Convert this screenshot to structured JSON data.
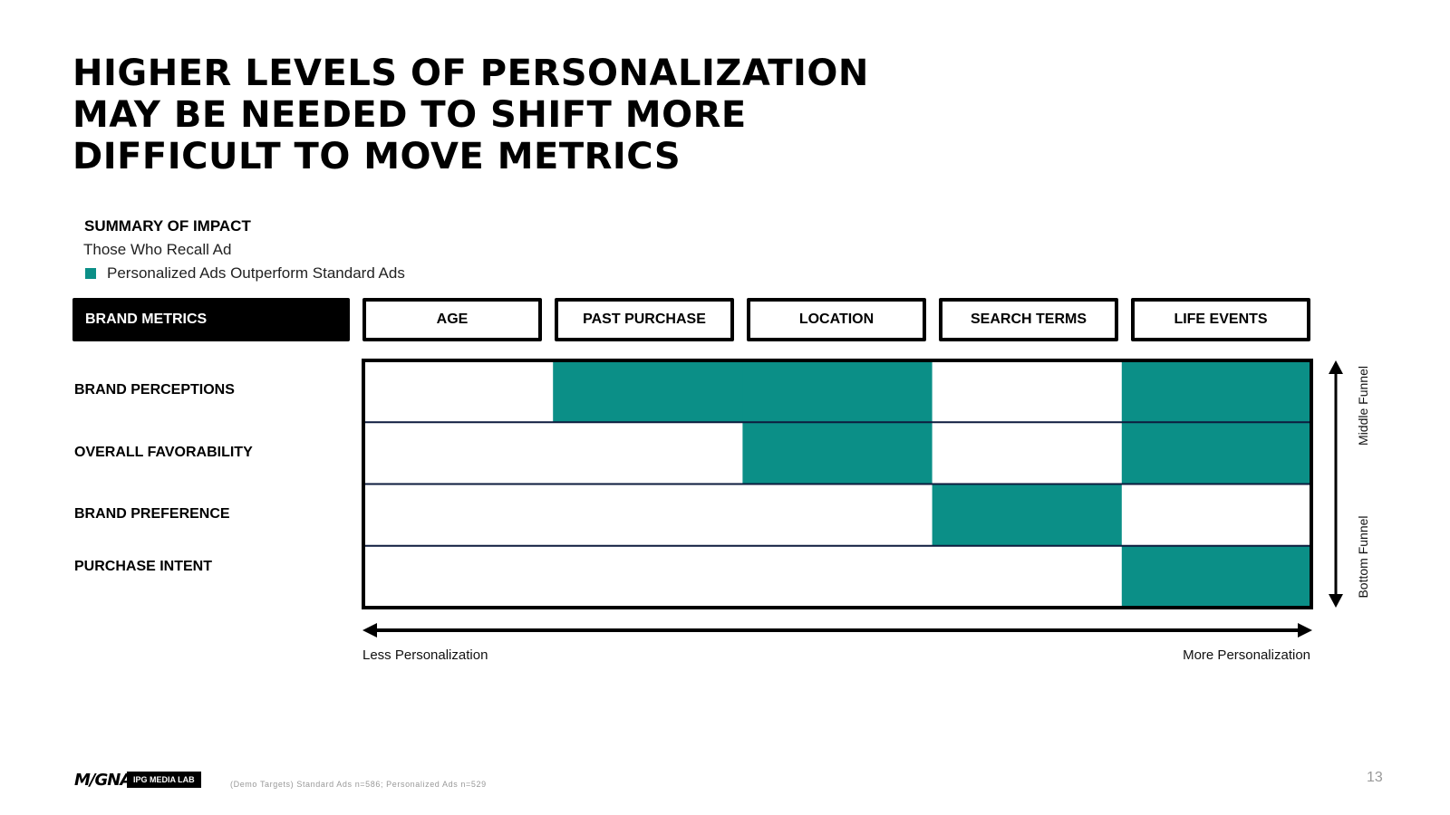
{
  "title_lines": [
    "HIGHER LEVELS OF PERSONALIZATION",
    "MAY BE NEEDED TO SHIFT MORE",
    "DIFFICULT TO MOVE METRICS"
  ],
  "summary": {
    "heading": "SUMMARY OF IMPACT",
    "subheading": "Those Who Recall Ad",
    "legend_label": "Personalized Ads Outperform Standard Ads",
    "legend_color": "#0b8f87"
  },
  "chart_data": {
    "type": "heatmap",
    "corner_header": "BRAND METRICS",
    "columns": [
      "AGE",
      "PAST PURCHASE",
      "LOCATION",
      "SEARCH TERMS",
      "LIFE EVENTS"
    ],
    "rows": [
      "BRAND PERCEPTIONS",
      "OVERALL FAVORABILITY",
      "BRAND PREFERENCE",
      "PURCHASE INTENT"
    ],
    "values": [
      [
        0,
        1,
        1,
        0,
        1
      ],
      [
        0,
        0,
        1,
        0,
        1
      ],
      [
        0,
        0,
        0,
        1,
        0
      ],
      [
        0,
        0,
        0,
        0,
        1
      ]
    ],
    "highlight_color": "#0b8f87",
    "x_axis": {
      "left_label": "Less Personalization",
      "right_label": "More Personalization"
    },
    "y_axis": {
      "top_label": "Middle Funnel",
      "bottom_label": "Bottom Funnel"
    }
  },
  "footer": {
    "logo_text": "M/GNA",
    "badge_text": "IPG MEDIA LAB",
    "footnote": "(Demo Targets) Standard Ads n=586; Personalized Ads n=529",
    "page_number": "13"
  }
}
